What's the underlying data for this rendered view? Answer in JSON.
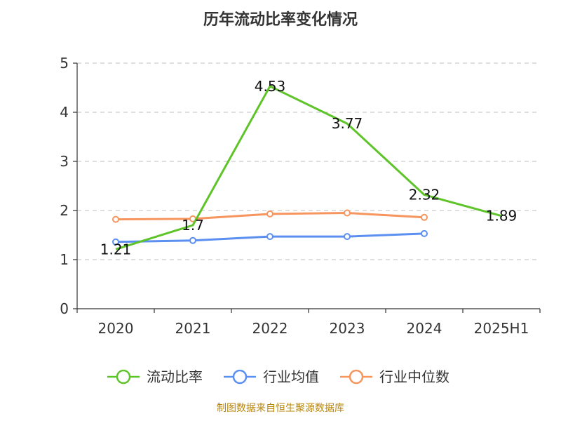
{
  "chart_data": {
    "type": "line",
    "title": "历年流动比率变化情况",
    "categories": [
      "2020",
      "2021",
      "2022",
      "2023",
      "2024",
      "2025H1"
    ],
    "ylim": [
      0,
      5
    ],
    "yticks": [
      0,
      1,
      2,
      3,
      4,
      5
    ],
    "grid": true,
    "legend_position": "bottom",
    "series": [
      {
        "name": "流动比率",
        "color": "#5ec42a",
        "values": [
          1.21,
          1.7,
          4.53,
          3.77,
          2.32,
          1.89
        ],
        "show_labels": true,
        "markers": false
      },
      {
        "name": "行业均值",
        "color": "#5b8ff0",
        "values": [
          1.36,
          1.39,
          1.47,
          1.47,
          1.53,
          null
        ],
        "show_labels": false,
        "markers": true
      },
      {
        "name": "行业中位数",
        "color": "#f7955f",
        "values": [
          1.82,
          1.83,
          1.93,
          1.95,
          1.86,
          null
        ],
        "show_labels": false,
        "markers": true
      }
    ],
    "source": "制图数据来自恒生聚源数据库"
  }
}
